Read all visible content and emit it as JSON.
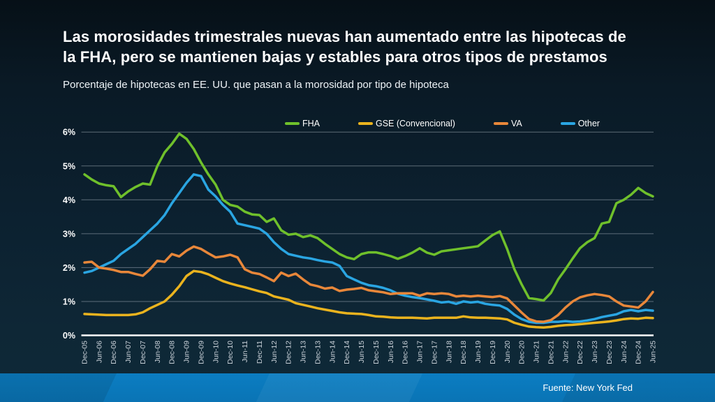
{
  "page": {
    "title_line1": "Las morosidades trimestrales nuevas han aumentado entre las hipotecas de",
    "title_line2": "la FHA, pero se mantienen bajas y estables para otros tipos de prestamos",
    "subtitle": "Porcentaje de hipotecas en EE. UU. que pasan a la morosidad por tipo de hipoteca",
    "source": "Fuente: New York Fed",
    "background_color": "#0c2130",
    "footer_color": "#0b7dc2"
  },
  "chart_data": {
    "type": "line",
    "title": "Porcentaje de hipotecas en EE. UU. que pasan a la morosidad por tipo de hipoteca",
    "xlabel": "",
    "ylabel": "",
    "ylim": [
      0,
      6
    ],
    "grid": true,
    "legend_position": "top",
    "y_tick_labels": [
      "0%",
      "1%",
      "2%",
      "3%",
      "4%",
      "5%",
      "6%"
    ],
    "x_frequency": "quarterly",
    "x_tick_labels": [
      "Dec-05",
      "Jun-06",
      "Dec-06",
      "Jun-07",
      "Dec-07",
      "Jun-08",
      "Dec-08",
      "Jun-09",
      "Dec-09",
      "Jun-10",
      "Dec-10",
      "Jun-11",
      "Dec-11",
      "Jun-12",
      "Dec-12",
      "Jun-13",
      "Dec-13",
      "Jun-14",
      "Dec-14",
      "Jun-15",
      "Dec-15",
      "Jun-16",
      "Dec-16",
      "Jun-17",
      "Dec-17",
      "Jun-18",
      "Dec-18",
      "Jun-19",
      "Dec-19",
      "Jun-20",
      "Dec-20",
      "Jun-21",
      "Dec-21",
      "Jun-22",
      "Dec-22",
      "Jun-23",
      "Dec-23",
      "Jun-24",
      "Dec-24",
      "Jun-25"
    ],
    "series": [
      {
        "name": "FHA",
        "color": "#6fc02b",
        "values": [
          4.75,
          4.6,
          4.48,
          4.43,
          4.4,
          4.08,
          4.25,
          4.38,
          4.48,
          4.45,
          5.0,
          5.4,
          5.65,
          5.95,
          5.8,
          5.5,
          5.1,
          4.75,
          4.45,
          4.0,
          3.85,
          3.8,
          3.65,
          3.57,
          3.55,
          3.35,
          3.45,
          3.1,
          2.97,
          3.0,
          2.9,
          2.95,
          2.87,
          2.7,
          2.55,
          2.4,
          2.3,
          2.25,
          2.4,
          2.45,
          2.45,
          2.4,
          2.34,
          2.26,
          2.34,
          2.44,
          2.57,
          2.44,
          2.38,
          2.48,
          2.51,
          2.54,
          2.57,
          2.6,
          2.63,
          2.8,
          2.96,
          3.07,
          2.55,
          1.95,
          1.5,
          1.1,
          1.07,
          1.03,
          1.25,
          1.65,
          1.95,
          2.27,
          2.57,
          2.75,
          2.87,
          3.3,
          3.35,
          3.9,
          4.0,
          4.15,
          4.35,
          4.2,
          4.1
        ]
      },
      {
        "name": "GSE (Convencional)",
        "color": "#eab31e",
        "values": [
          0.63,
          0.62,
          0.61,
          0.6,
          0.6,
          0.6,
          0.6,
          0.62,
          0.68,
          0.8,
          0.9,
          1.0,
          1.2,
          1.45,
          1.75,
          1.9,
          1.87,
          1.8,
          1.7,
          1.6,
          1.53,
          1.47,
          1.42,
          1.36,
          1.3,
          1.25,
          1.15,
          1.1,
          1.05,
          0.95,
          0.9,
          0.85,
          0.8,
          0.76,
          0.72,
          0.68,
          0.65,
          0.64,
          0.63,
          0.6,
          0.56,
          0.55,
          0.53,
          0.52,
          0.52,
          0.52,
          0.51,
          0.5,
          0.52,
          0.52,
          0.52,
          0.52,
          0.56,
          0.53,
          0.52,
          0.52,
          0.51,
          0.5,
          0.47,
          0.37,
          0.31,
          0.26,
          0.24,
          0.23,
          0.25,
          0.28,
          0.3,
          0.31,
          0.33,
          0.35,
          0.37,
          0.39,
          0.41,
          0.44,
          0.48,
          0.5,
          0.49,
          0.52,
          0.51
        ]
      },
      {
        "name": "VA",
        "color": "#e8873a",
        "values": [
          2.15,
          2.17,
          2.0,
          1.97,
          1.93,
          1.87,
          1.87,
          1.81,
          1.76,
          1.95,
          2.2,
          2.17,
          2.4,
          2.33,
          2.5,
          2.62,
          2.55,
          2.42,
          2.3,
          2.33,
          2.38,
          2.3,
          1.95,
          1.85,
          1.81,
          1.71,
          1.6,
          1.85,
          1.75,
          1.82,
          1.65,
          1.5,
          1.45,
          1.38,
          1.41,
          1.31,
          1.35,
          1.37,
          1.4,
          1.33,
          1.3,
          1.27,
          1.22,
          1.24,
          1.24,
          1.24,
          1.17,
          1.24,
          1.22,
          1.24,
          1.22,
          1.15,
          1.17,
          1.15,
          1.17,
          1.15,
          1.13,
          1.16,
          1.09,
          0.88,
          0.67,
          0.48,
          0.41,
          0.4,
          0.45,
          0.6,
          0.82,
          1.0,
          1.12,
          1.18,
          1.22,
          1.19,
          1.15,
          1.0,
          0.88,
          0.85,
          0.82,
          1.0,
          1.28
        ]
      },
      {
        "name": "Other",
        "color": "#2aa5e2",
        "values": [
          1.85,
          1.9,
          2.0,
          2.1,
          2.2,
          2.4,
          2.55,
          2.7,
          2.9,
          3.1,
          3.3,
          3.55,
          3.9,
          4.2,
          4.5,
          4.75,
          4.7,
          4.3,
          4.1,
          3.85,
          3.65,
          3.3,
          3.25,
          3.2,
          3.15,
          3.0,
          2.75,
          2.55,
          2.4,
          2.35,
          2.3,
          2.27,
          2.22,
          2.18,
          2.15,
          2.05,
          1.75,
          1.65,
          1.55,
          1.48,
          1.45,
          1.4,
          1.33,
          1.23,
          1.17,
          1.13,
          1.1,
          1.06,
          1.02,
          0.97,
          0.99,
          0.93,
          1.0,
          0.97,
          0.99,
          0.93,
          0.9,
          0.88,
          0.78,
          0.61,
          0.48,
          0.4,
          0.37,
          0.37,
          0.4,
          0.4,
          0.42,
          0.4,
          0.41,
          0.44,
          0.48,
          0.54,
          0.58,
          0.62,
          0.71,
          0.75,
          0.71,
          0.75,
          0.73
        ]
      }
    ]
  }
}
